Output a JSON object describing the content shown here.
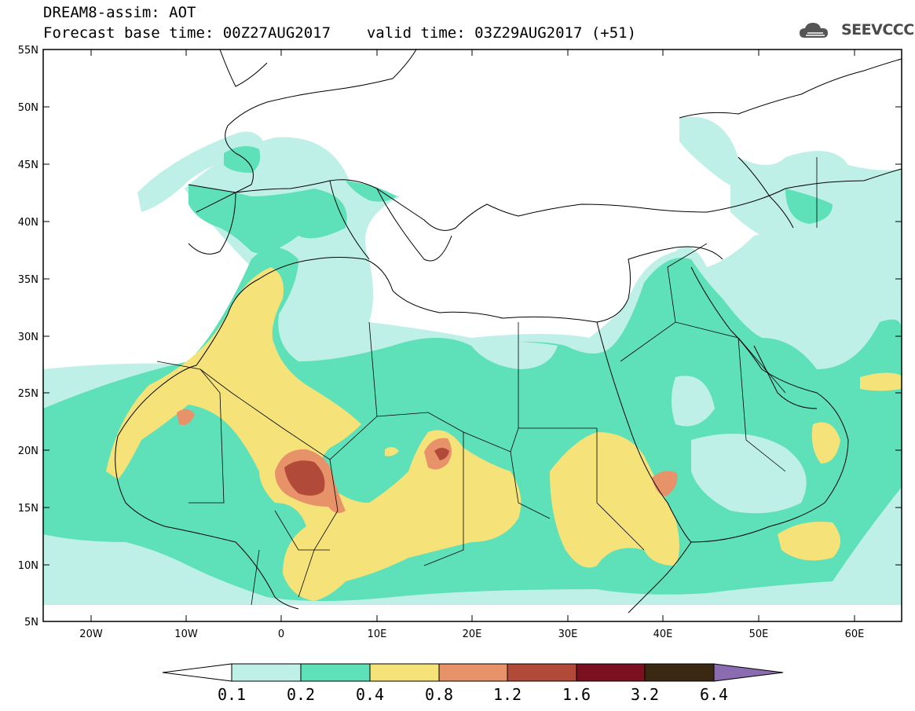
{
  "header": {
    "title": "DREAM8-assim: AOT",
    "base_time_label": "Forecast base time:",
    "base_time": "00Z27AUG2017",
    "valid_time_label": "valid time:",
    "valid_time": "03Z29AUG2017 (+51)"
  },
  "logo": {
    "text": "SEEVCCC",
    "icon": "cloud-icon"
  },
  "map": {
    "lat_labels": [
      "55N",
      "50N",
      "45N",
      "40N",
      "35N",
      "30N",
      "25N",
      "20N",
      "15N",
      "10N",
      "5N"
    ],
    "lon_labels": [
      "20W",
      "10W",
      "0",
      "10E",
      "20E",
      "30E",
      "40E",
      "50E",
      "60E"
    ],
    "extent": {
      "lon_min": -25,
      "lon_max": 65,
      "lat_min": 5,
      "lat_max": 55
    }
  },
  "colorbar": {
    "levels": [
      "0.1",
      "0.2",
      "0.4",
      "0.8",
      "1.2",
      "1.6",
      "3.2",
      "6.4"
    ],
    "colors": [
      "#ffffff",
      "#bff0e8",
      "#5ee0b8",
      "#f5e37a",
      "#e8926a",
      "#b24a3a",
      "#7a1020",
      "#3a2812",
      "#8c6cb0"
    ]
  },
  "palette": {
    "aot_01_02": "#bff0e8",
    "aot_02_04": "#5ee0b8",
    "aot_04_08": "#f5e37a",
    "aot_08_12": "#e8926a",
    "aot_12_16": "#b24a3a"
  }
}
